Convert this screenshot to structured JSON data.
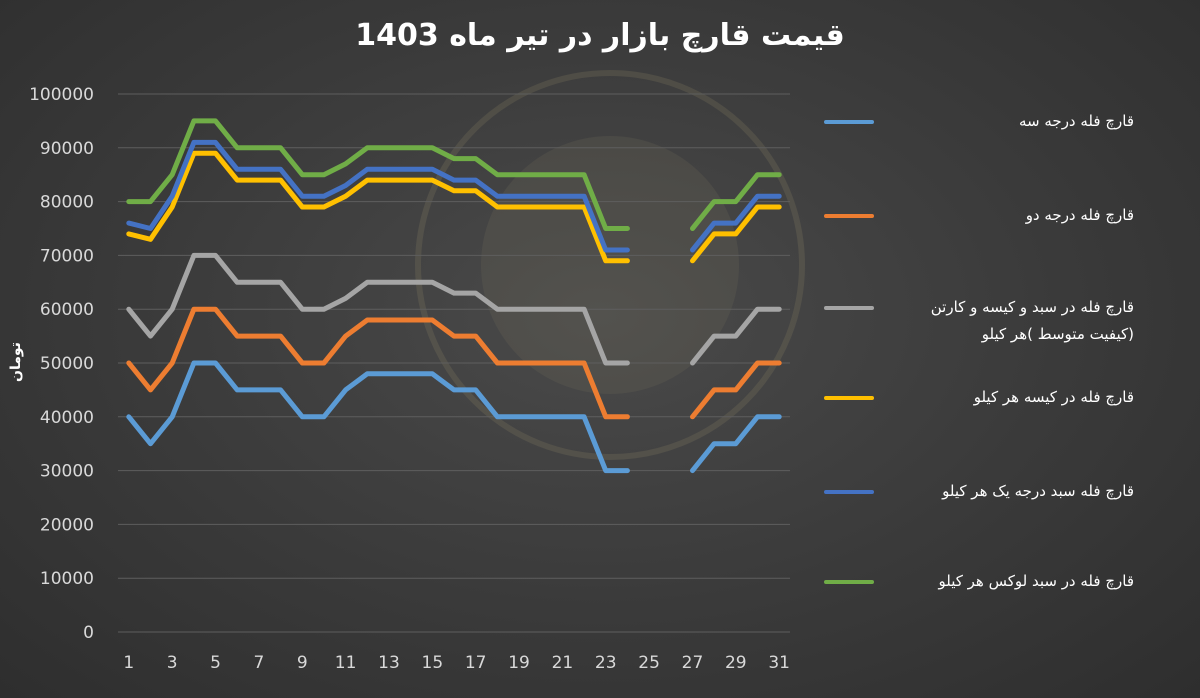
{
  "chart_data": {
    "type": "line",
    "title": "قیمت قارچ بازار در تیر ماه 1403",
    "ylabel": "تومان",
    "xlabel": "",
    "ylim": [
      0,
      100000
    ],
    "yticks": [
      "0",
      "10000",
      "20000",
      "30000",
      "40000",
      "50000",
      "60000",
      "70000",
      "80000",
      "90000",
      "100000"
    ],
    "xticks": [
      "1",
      "3",
      "5",
      "7",
      "9",
      "11",
      "13",
      "15",
      "17",
      "19",
      "21",
      "23",
      "25",
      "27",
      "29",
      "31"
    ],
    "x": [
      1,
      2,
      3,
      4,
      5,
      6,
      7,
      8,
      9,
      10,
      11,
      12,
      13,
      14,
      15,
      16,
      17,
      18,
      19,
      20,
      21,
      22,
      23,
      24,
      25,
      26,
      27,
      28,
      29,
      30,
      31
    ],
    "grid": true,
    "legend": "right",
    "series": [
      {
        "name": "قارچ فله درجه سه",
        "color": "#5b9bd5",
        "values": [
          40000,
          35000,
          40000,
          50000,
          50000,
          45000,
          45000,
          45000,
          40000,
          40000,
          45000,
          48000,
          48000,
          48000,
          48000,
          45000,
          45000,
          40000,
          40000,
          40000,
          40000,
          40000,
          30000,
          30000,
          null,
          null,
          30000,
          35000,
          35000,
          40000,
          40000
        ]
      },
      {
        "name": "قارچ فله درجه دو",
        "color": "#ed7d31",
        "values": [
          50000,
          45000,
          50000,
          60000,
          60000,
          55000,
          55000,
          55000,
          50000,
          50000,
          55000,
          58000,
          58000,
          58000,
          58000,
          55000,
          55000,
          50000,
          50000,
          50000,
          50000,
          50000,
          40000,
          40000,
          null,
          null,
          40000,
          45000,
          45000,
          50000,
          50000
        ]
      },
      {
        "name": "قارچ فله در سبد و کیسه و کارتن (کیفیت متوسط )هر کیلو",
        "color": "#a5a5a5",
        "values": [
          60000,
          55000,
          60000,
          70000,
          70000,
          65000,
          65000,
          65000,
          60000,
          60000,
          62000,
          65000,
          65000,
          65000,
          65000,
          63000,
          63000,
          60000,
          60000,
          60000,
          60000,
          60000,
          50000,
          50000,
          null,
          null,
          50000,
          55000,
          55000,
          60000,
          60000
        ]
      },
      {
        "name": "قارچ فله در کیسه هر کیلو",
        "color": "#ffc000",
        "values": [
          74000,
          73000,
          79000,
          89000,
          89000,
          84000,
          84000,
          84000,
          79000,
          79000,
          81000,
          84000,
          84000,
          84000,
          84000,
          82000,
          82000,
          79000,
          79000,
          79000,
          79000,
          79000,
          69000,
          69000,
          null,
          null,
          69000,
          74000,
          74000,
          79000,
          79000
        ]
      },
      {
        "name": "قارچ فله سبد درجه یک هر کیلو",
        "color": "#4472c4",
        "values": [
          76000,
          75000,
          81000,
          91000,
          91000,
          86000,
          86000,
          86000,
          81000,
          81000,
          83000,
          86000,
          86000,
          86000,
          86000,
          84000,
          84000,
          81000,
          81000,
          81000,
          81000,
          81000,
          71000,
          71000,
          null,
          null,
          71000,
          76000,
          76000,
          81000,
          81000
        ]
      },
      {
        "name": "قارچ فله در سبد لوکس هر کیلو",
        "color": "#70ad47",
        "values": [
          80000,
          80000,
          85000,
          95000,
          95000,
          90000,
          90000,
          90000,
          85000,
          85000,
          87000,
          90000,
          90000,
          90000,
          90000,
          88000,
          88000,
          85000,
          85000,
          85000,
          85000,
          85000,
          75000,
          75000,
          null,
          null,
          75000,
          80000,
          80000,
          85000,
          85000
        ]
      }
    ]
  }
}
